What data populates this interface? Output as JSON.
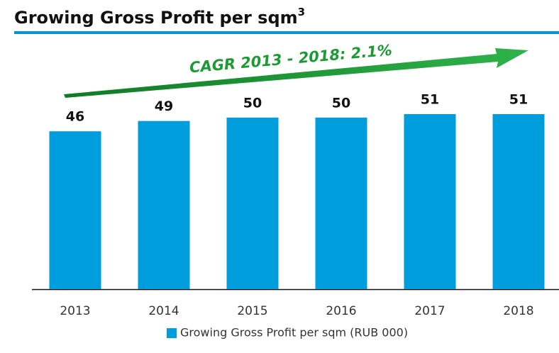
{
  "chart_data": {
    "type": "bar",
    "title": "Growing Gross Profit per sqm",
    "title_superscript": "3",
    "annotation": "CAGR 2013 - 2018: 2.1%",
    "categories": [
      "2013",
      "2014",
      "2015",
      "2016",
      "2017",
      "2018"
    ],
    "series": [
      {
        "name": "Growing Gross Profit per sqm (RUB 000)",
        "color": "#009ddc",
        "values": [
          46,
          49,
          50,
          50,
          51,
          51
        ]
      }
    ]
  }
}
